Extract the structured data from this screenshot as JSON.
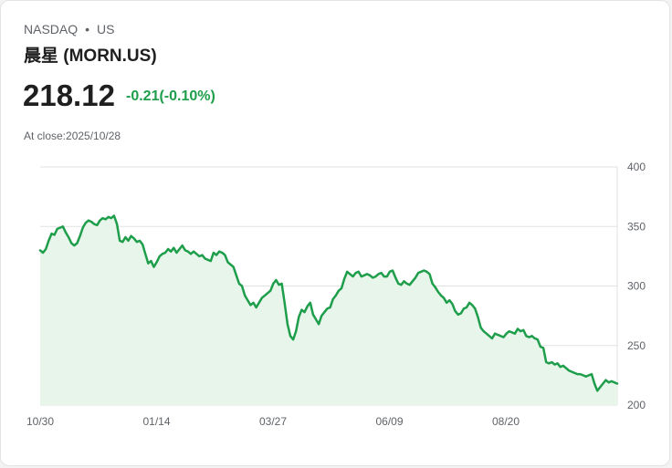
{
  "header": {
    "exchange": "NASDAQ",
    "separator": "•",
    "market": "US",
    "name": "晨星 (MORN.US)"
  },
  "quote": {
    "price": "218.12",
    "change": "-0.21(-0.10%)",
    "close_label": "At close:",
    "close_date": "2025/10/28"
  },
  "colors": {
    "line": "#1e9e4b",
    "fill": "#e7f5ea",
    "grid": "#e2e2e2",
    "change": "#1e9e4b"
  },
  "chart_data": {
    "type": "area",
    "ylim": [
      200,
      400
    ],
    "y_ticks": [
      400,
      350,
      300,
      250,
      200
    ],
    "x_ticks": [
      "10/30",
      "01/14",
      "03/27",
      "06/09",
      "08/20"
    ],
    "grid": true,
    "y_axis_position": "right",
    "series": [
      {
        "values": [
          330,
          328,
          331,
          338,
          344,
          343,
          348,
          349,
          350,
          345,
          341,
          336,
          334,
          336,
          342,
          349,
          353,
          355,
          354,
          352,
          351,
          355,
          357,
          356,
          358,
          357,
          359,
          352,
          338,
          337,
          341,
          338,
          342,
          340,
          337,
          338,
          335,
          327,
          319,
          321,
          316,
          320,
          325,
          327,
          328,
          331,
          329,
          332,
          328,
          331,
          334,
          330,
          329,
          327,
          329,
          327,
          325,
          326,
          323,
          322,
          321,
          328,
          326,
          329,
          328,
          326,
          320,
          318,
          316,
          309,
          302,
          300,
          292,
          288,
          284,
          286,
          282,
          286,
          290,
          292,
          294,
          296,
          302,
          305,
          301,
          302,
          286,
          268,
          258,
          255,
          262,
          274,
          280,
          278,
          283,
          286,
          276,
          272,
          268,
          275,
          278,
          281,
          282,
          289,
          292,
          296,
          298,
          306,
          312,
          310,
          308,
          311,
          312,
          308,
          309,
          310,
          309,
          307,
          308,
          310,
          311,
          308,
          308,
          312,
          313,
          307,
          302,
          301,
          304,
          302,
          301,
          304,
          307,
          311,
          312,
          313,
          312,
          310,
          302,
          299,
          295,
          292,
          290,
          286,
          288,
          285,
          279,
          276,
          277,
          281,
          282,
          286,
          284,
          281,
          274,
          265,
          262,
          260,
          258,
          256,
          260,
          259,
          258,
          257,
          260,
          262,
          261,
          260,
          264,
          262,
          263,
          258,
          257,
          258,
          256,
          255,
          249,
          248,
          236,
          235,
          236,
          234,
          235,
          232,
          233,
          231,
          229,
          228,
          227,
          226,
          226,
          225,
          224,
          225,
          226,
          218,
          212,
          215,
          218,
          221,
          219,
          220,
          219,
          218
        ]
      }
    ]
  }
}
